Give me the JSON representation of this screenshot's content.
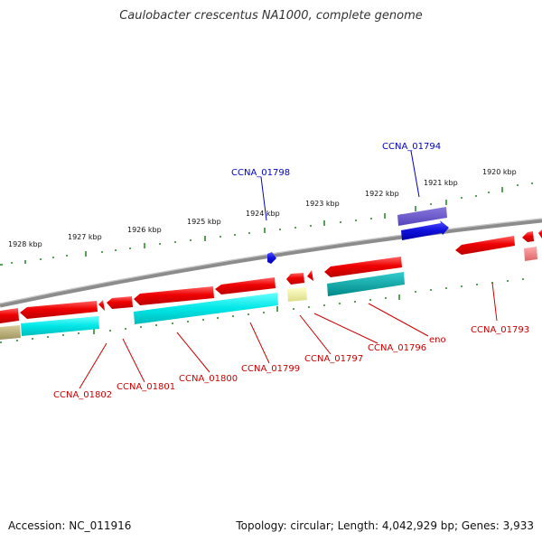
{
  "title": "Caulobacter crescentus NA1000, complete genome",
  "footer": {
    "accession": "Accession: NC_011916",
    "summary": "Topology: circular; Length: 4,042,929 bp; Genes: 3,933"
  },
  "colors": {
    "backbone": "#8c8c8c",
    "ticks": "#2e8b2e",
    "red_gene": "#ee0000",
    "blue_gene": "#1111dd",
    "purple_gene": "#6655cc",
    "cyan_gene": "#00e0e0",
    "teal_gene": "#00aaaa",
    "yellow_gene": "#eeee99",
    "olive_gene": "#bbb077",
    "pink_gene": "#f08080",
    "red_label": "#cc0000",
    "blue_label": "#0000cc"
  },
  "kbp_labels": [
    "1928 kbp",
    "1927 kbp",
    "1926 kbp",
    "1925 kbp",
    "1924 kbp",
    "1923 kbp",
    "1922 kbp",
    "1921 kbp",
    "1920 kbp"
  ],
  "gene_labels_top": [
    "CCNA_01798",
    "CCNA_01794"
  ],
  "gene_labels_bottom": [
    "CCNA_01802",
    "CCNA_01801",
    "CCNA_01800",
    "CCNA_01799",
    "CCNA_01797",
    "CCNA_01796",
    "eno",
    "CCNA_01793"
  ]
}
